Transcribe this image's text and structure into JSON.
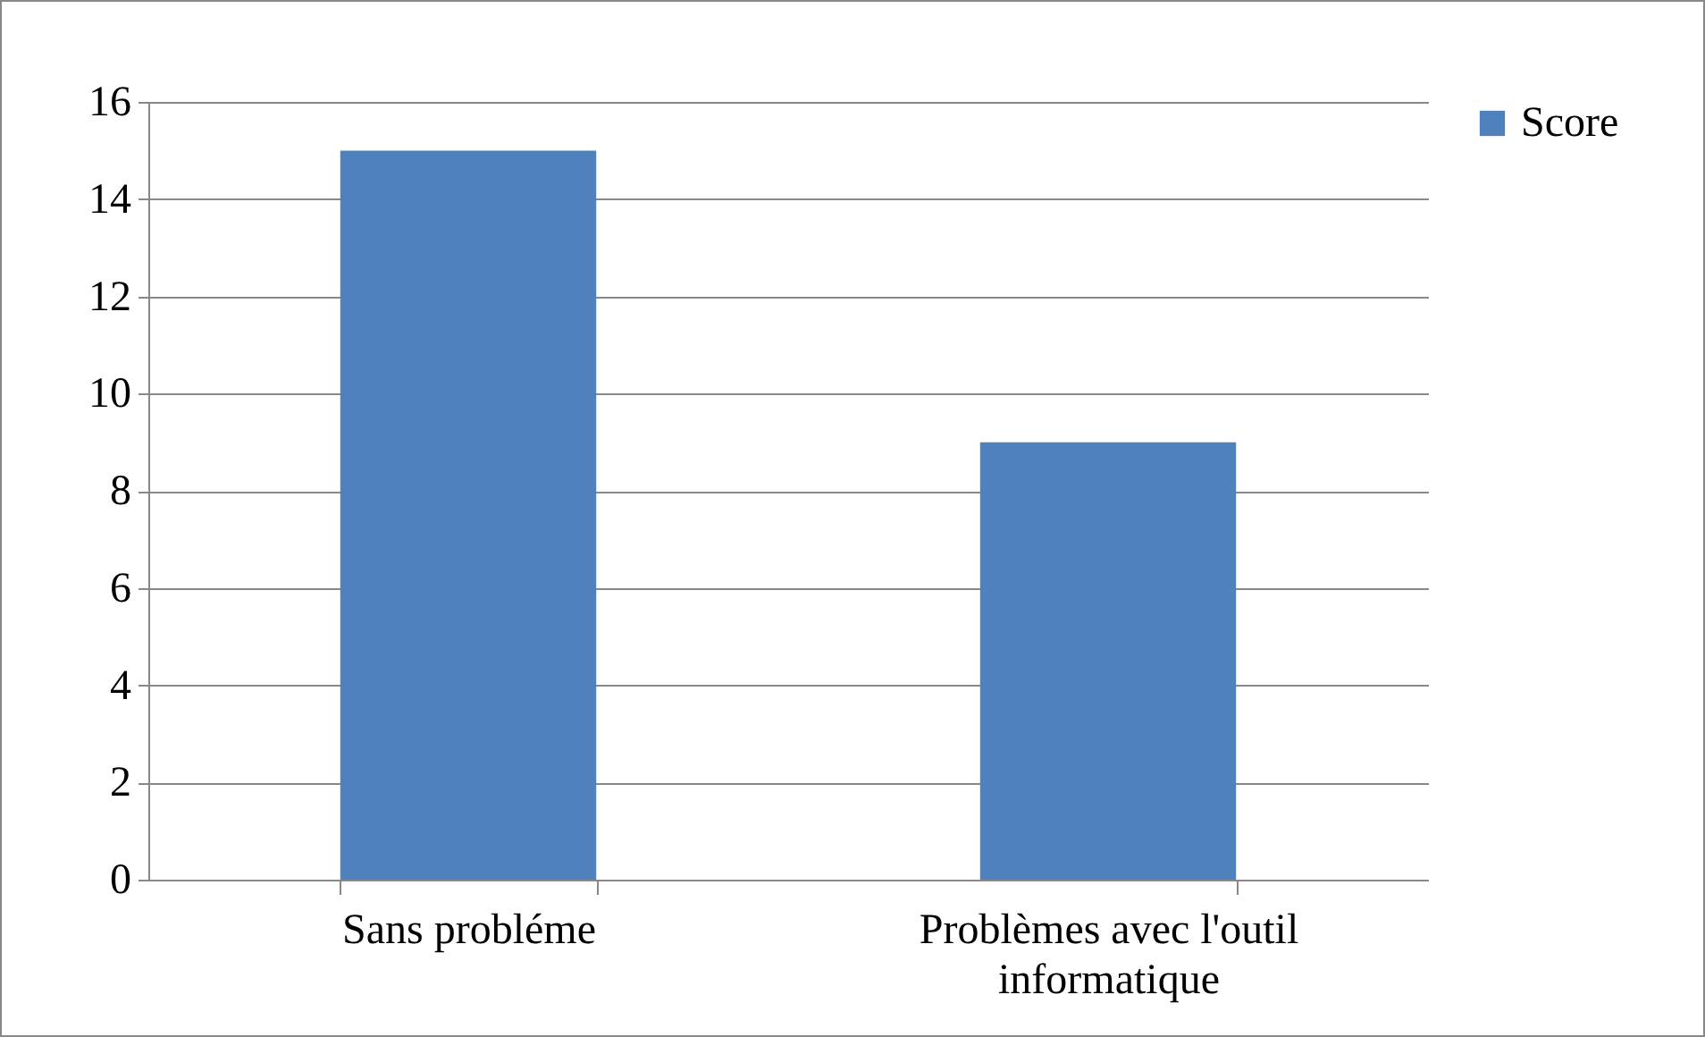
{
  "chart_data": {
    "type": "bar",
    "categories": [
      "Sans probléme",
      "Problèmes avec l'outil informatique"
    ],
    "series": [
      {
        "name": "Score",
        "color": "#4f81bd",
        "values": [
          15,
          9
        ]
      }
    ],
    "ylim": [
      0,
      16
    ],
    "yticks": [
      0,
      2,
      4,
      6,
      8,
      10,
      12,
      14,
      16
    ],
    "grid": "y",
    "legend": "right"
  }
}
